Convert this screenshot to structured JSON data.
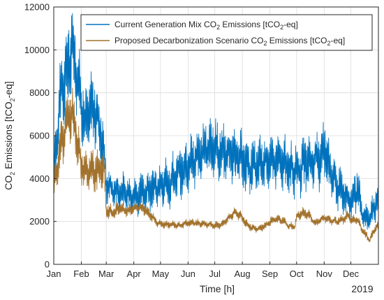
{
  "chart_data": {
    "type": "line",
    "title": "",
    "xlabel": "Time [h]",
    "ylabel_main": "CO",
    "ylabel_sub": "2",
    "ylabel_rest": " Emissions [tCO",
    "ylabel_sub2": "2",
    "ylabel_end": "-eq]",
    "year_label": "2019",
    "xlim": [
      1,
      366
    ],
    "ylim": [
      0,
      12000
    ],
    "grid": true,
    "legend_position": "top-right",
    "x_ticks": [
      {
        "label": "Jan",
        "day": 1
      },
      {
        "label": "Feb",
        "day": 32
      },
      {
        "label": "Mar",
        "day": 60
      },
      {
        "label": "Apr",
        "day": 91
      },
      {
        "label": "May",
        "day": 121
      },
      {
        "label": "Jun",
        "day": 152
      },
      {
        "label": "Jul",
        "day": 182
      },
      {
        "label": "Aug",
        "day": 213
      },
      {
        "label": "Sep",
        "day": 244
      },
      {
        "label": "Oct",
        "day": 274
      },
      {
        "label": "Nov",
        "day": 305
      },
      {
        "label": "Dec",
        "day": 335
      }
    ],
    "y_ticks": [
      0,
      2000,
      4000,
      6000,
      8000,
      10000,
      12000
    ],
    "series": [
      {
        "name_parts": [
          "Current Generation Mix CO",
          "2",
          " Emissions [tCO",
          "2",
          "-eq]"
        ],
        "color": "#0072BD",
        "x": [
          1,
          8,
          15,
          22,
          29,
          36,
          43,
          50,
          57,
          60,
          67,
          74,
          81,
          88,
          91,
          98,
          105,
          112,
          119,
          121,
          128,
          135,
          142,
          149,
          152,
          159,
          166,
          173,
          180,
          182,
          189,
          196,
          203,
          210,
          213,
          220,
          227,
          234,
          241,
          244,
          251,
          258,
          265,
          272,
          274,
          281,
          288,
          295,
          302,
          305,
          312,
          319,
          326,
          333,
          335,
          342,
          349,
          356,
          363,
          366
        ],
        "values": [
          4200,
          7800,
          8800,
          10200,
          8400,
          6500,
          7400,
          6900,
          5400,
          3800,
          3500,
          3400,
          3300,
          3300,
          3200,
          3200,
          3400,
          3500,
          3600,
          3600,
          3800,
          4000,
          4300,
          4500,
          4700,
          4900,
          5100,
          5400,
          5500,
          5400,
          5200,
          5200,
          5100,
          4900,
          4800,
          4600,
          4500,
          4700,
          4800,
          4800,
          4900,
          4700,
          4500,
          4400,
          4400,
          4600,
          4800,
          4800,
          5100,
          5600,
          4400,
          3700,
          3400,
          3000,
          2900,
          3500,
          2200,
          2100,
          2900,
          3000
        ],
        "amplitude": [
          800,
          1300,
          1500,
          1500,
          1300,
          1100,
          1200,
          1200,
          1000,
          700,
          600,
          650,
          700,
          650,
          650,
          700,
          700,
          750,
          800,
          800,
          850,
          900,
          950,
          1000,
          1000,
          1050,
          1050,
          1050,
          1050,
          1050,
          1050,
          1000,
          1000,
          1000,
          1000,
          950,
          950,
          950,
          950,
          950,
          950,
          950,
          950,
          950,
          950,
          950,
          1000,
          1000,
          1100,
          1300,
          950,
          800,
          750,
          700,
          700,
          800,
          500,
          450,
          650,
          700
        ]
      },
      {
        "name_parts": [
          "Proposed Decarbonization Scenario CO",
          "2",
          " Emissions [tCO",
          "2",
          "-eq]"
        ],
        "color": "#A2722C",
        "x": [
          1,
          8,
          15,
          22,
          29,
          36,
          43,
          50,
          57,
          60,
          67,
          74,
          81,
          88,
          91,
          98,
          105,
          112,
          119,
          121,
          128,
          135,
          142,
          149,
          152,
          159,
          166,
          173,
          180,
          182,
          189,
          196,
          203,
          210,
          213,
          220,
          227,
          234,
          241,
          244,
          251,
          258,
          265,
          272,
          274,
          281,
          288,
          295,
          302,
          305,
          312,
          319,
          326,
          333,
          335,
          342,
          349,
          356,
          363,
          366
        ],
        "values": [
          3600,
          5500,
          6500,
          7100,
          5300,
          4200,
          4600,
          4200,
          4700,
          2500,
          2400,
          2600,
          2500,
          2500,
          2600,
          2700,
          2500,
          2200,
          1900,
          1900,
          1850,
          1850,
          1800,
          1900,
          1950,
          1950,
          1900,
          1850,
          1850,
          1800,
          1850,
          2100,
          2400,
          2300,
          2150,
          1800,
          1650,
          1700,
          1850,
          2000,
          2100,
          2050,
          1800,
          1750,
          2200,
          2400,
          2300,
          1900,
          2100,
          2200,
          2050,
          2000,
          2100,
          2300,
          2050,
          2100,
          1500,
          1150,
          1700,
          1800
        ],
        "amplitude": [
          600,
          900,
          1000,
          900,
          800,
          700,
          750,
          800,
          900,
          300,
          250,
          250,
          200,
          220,
          220,
          220,
          200,
          180,
          150,
          150,
          130,
          130,
          130,
          140,
          140,
          140,
          130,
          130,
          130,
          130,
          140,
          160,
          180,
          170,
          160,
          140,
          130,
          130,
          140,
          150,
          160,
          150,
          140,
          140,
          170,
          180,
          170,
          150,
          160,
          170,
          160,
          160,
          170,
          180,
          170,
          170,
          150,
          140,
          160,
          170
        ]
      }
    ]
  }
}
